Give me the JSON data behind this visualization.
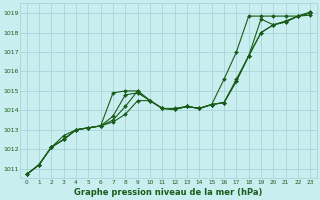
{
  "title": "Graphe pression niveau de la mer (hPa)",
  "bg_color": "#c8eef0",
  "grid_color": "#aad4d8",
  "line_color": "#1a5c1a",
  "xlim": [
    -0.5,
    23.5
  ],
  "ylim": [
    1010.5,
    1019.5
  ],
  "yticks": [
    1011,
    1012,
    1013,
    1014,
    1015,
    1016,
    1017,
    1018,
    1019
  ],
  "xticks": [
    0,
    1,
    2,
    3,
    4,
    5,
    6,
    7,
    8,
    9,
    10,
    11,
    12,
    13,
    14,
    15,
    16,
    17,
    18,
    19,
    20,
    21,
    22,
    23
  ],
  "series": [
    [
      1010.7,
      1011.2,
      1012.1,
      1012.5,
      1013.0,
      1013.1,
      1013.2,
      1014.9,
      1015.0,
      1015.0,
      1014.5,
      1014.1,
      1014.1,
      1014.2,
      1014.1,
      1014.3,
      1014.4,
      1015.6,
      1016.8,
      1018.0,
      1018.4,
      1018.55,
      1018.85,
      1018.9
    ],
    [
      1010.7,
      1011.2,
      1012.1,
      1012.5,
      1013.0,
      1013.1,
      1013.2,
      1013.7,
      1014.8,
      1014.9,
      1014.5,
      1014.1,
      1014.05,
      1014.2,
      1014.1,
      1014.3,
      1014.4,
      1015.5,
      1016.8,
      1018.7,
      1018.4,
      1018.55,
      1018.85,
      1019.0
    ],
    [
      1010.7,
      1011.2,
      1012.1,
      1012.5,
      1013.0,
      1013.1,
      1013.2,
      1013.5,
      1014.2,
      1015.0,
      1014.5,
      1014.1,
      1014.05,
      1014.2,
      1014.1,
      1014.3,
      1015.6,
      1017.0,
      1018.85,
      1018.85,
      1018.85,
      1018.85,
      1018.85,
      1019.05
    ],
    [
      1010.7,
      1011.2,
      1012.1,
      1012.7,
      1013.0,
      1013.1,
      1013.2,
      1013.4,
      1013.8,
      1014.5,
      1014.5,
      1014.1,
      1014.05,
      1014.2,
      1014.1,
      1014.3,
      1014.4,
      1015.5,
      1016.8,
      1018.0,
      1018.4,
      1018.6,
      1018.85,
      1019.05
    ]
  ]
}
